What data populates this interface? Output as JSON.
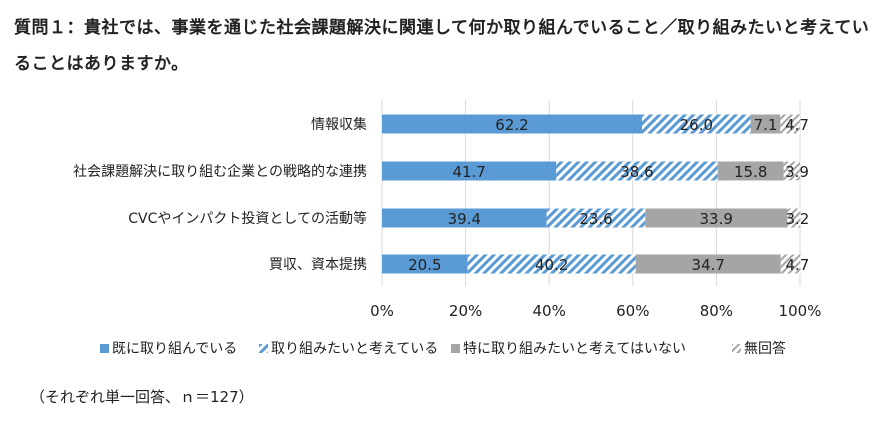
{
  "question": "質問１：貴社では、事業を通じた社会課題解決に関連して何か取り組んでいること／取り組みたいと考えていることはありますか。",
  "note": "（それぞれ単一回答、ｎ＝127）",
  "colors": {
    "series1": "#5b9bd5",
    "series2_stripe": "#5b9bd5",
    "series3": "#a5a5a5",
    "series4_stripe": "#a5a5a5",
    "grid": "#d9d9d9"
  },
  "chart_data": {
    "type": "bar",
    "orientation": "horizontal",
    "stacked": true,
    "percent_stacked": true,
    "categories": [
      "情報収集",
      "社会課題解決に取り組む企業との戦略的な連携",
      "CVCやインパクト投資としての活動等",
      "買収、資本提携"
    ],
    "series": [
      {
        "name": "既に取り組んでいる",
        "values": [
          62.2,
          41.7,
          39.4,
          20.5
        ],
        "fill": "solid-blue"
      },
      {
        "name": "取り組みたいと考えている",
        "values": [
          26.0,
          38.6,
          23.6,
          40.2
        ],
        "fill": "hatch-blue"
      },
      {
        "name": "特に取り組みたいと考えてはいない",
        "values": [
          7.1,
          15.8,
          33.9,
          34.7
        ],
        "fill": "solid-gray"
      },
      {
        "name": "無回答",
        "values": [
          4.7,
          3.9,
          3.2,
          4.7
        ],
        "fill": "hatch-gray"
      }
    ],
    "xlim": [
      0,
      100
    ],
    "xticks": [
      "0%",
      "20%",
      "40%",
      "60%",
      "80%",
      "100%"
    ],
    "grid": true,
    "legend": "bottom"
  }
}
